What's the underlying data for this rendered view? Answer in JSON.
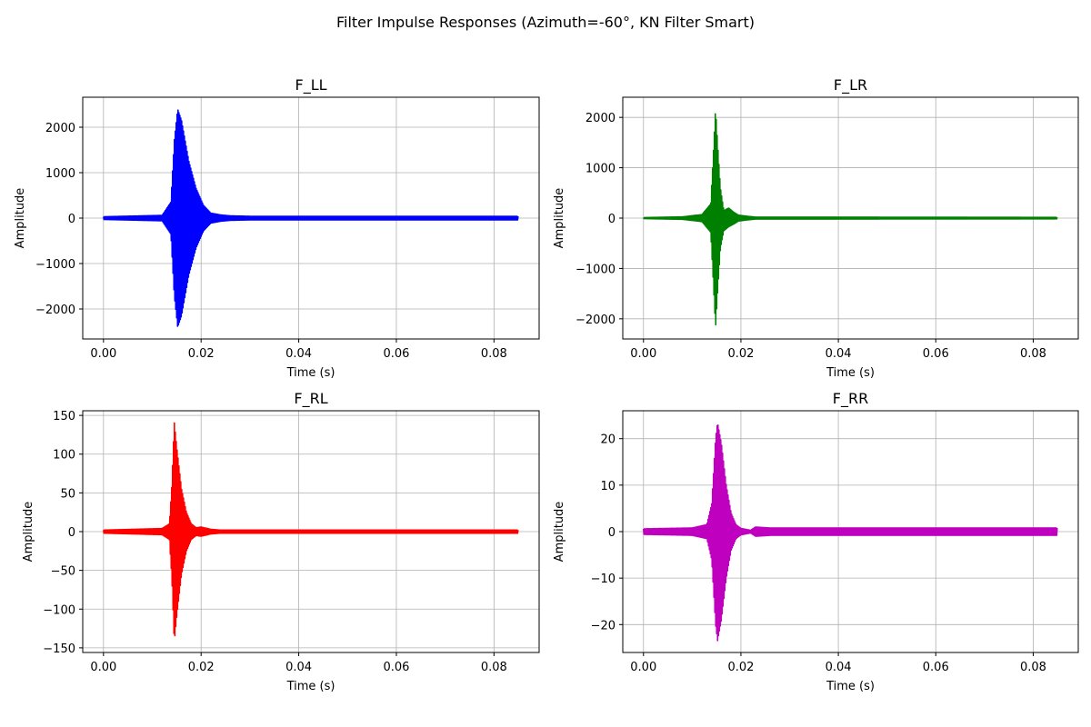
{
  "figure": {
    "title": "Filter Impulse Responses (Azimuth=-60°, KN Filter Smart)"
  },
  "chart_data": [
    {
      "type": "line",
      "title": "F_LL",
      "xlabel": "Time (s)",
      "ylabel": "Amplitude",
      "color": "#0000ff",
      "xlim": [
        -0.00425,
        0.08925
      ],
      "ylim": [
        -2660,
        2660
      ],
      "xticks": [
        0.0,
        0.02,
        0.04,
        0.06,
        0.08
      ],
      "xtick_labels": [
        "0.00",
        "0.02",
        "0.04",
        "0.06",
        "0.08"
      ],
      "yticks": [
        -2000,
        -1000,
        0,
        1000,
        2000
      ],
      "ytick_labels": [
        "−2000",
        "−1000",
        "0",
        "1000",
        "2000"
      ],
      "grid": true,
      "envelope": {
        "x": [
          0.0,
          0.012,
          0.0138,
          0.0145,
          0.0152,
          0.016,
          0.0175,
          0.019,
          0.0205,
          0.022,
          0.024,
          0.026,
          0.03,
          0.085
        ],
        "upper": [
          30,
          60,
          350,
          1700,
          2400,
          2150,
          1250,
          650,
          280,
          110,
          70,
          50,
          40,
          40
        ],
        "lower": [
          -30,
          -60,
          -350,
          -1700,
          -2400,
          -2150,
          -1250,
          -650,
          -280,
          -110,
          -70,
          -50,
          -40,
          -40
        ]
      }
    },
    {
      "type": "line",
      "title": "F_LR",
      "xlabel": "Time (s)",
      "ylabel": "Amplitude",
      "color": "#008000",
      "xlim": [
        -0.00425,
        0.08925
      ],
      "ylim": [
        -2400,
        2400
      ],
      "xticks": [
        0.0,
        0.02,
        0.04,
        0.06,
        0.08
      ],
      "xtick_labels": [
        "0.00",
        "0.02",
        "0.04",
        "0.06",
        "0.08"
      ],
      "yticks": [
        -2000,
        -1000,
        0,
        1000,
        2000
      ],
      "ytick_labels": [
        "−2000",
        "−1000",
        "0",
        "1000",
        "2000"
      ],
      "grid": true,
      "envelope": {
        "x": [
          0.0,
          0.008,
          0.012,
          0.0138,
          0.0144,
          0.0148,
          0.0152,
          0.0158,
          0.0165,
          0.0175,
          0.0185,
          0.0195,
          0.021,
          0.023,
          0.085
        ],
        "upper": [
          10,
          25,
          70,
          280,
          1400,
          2180,
          1500,
          600,
          150,
          200,
          120,
          60,
          40,
          20,
          15
        ],
        "lower": [
          -10,
          -25,
          -70,
          -280,
          -1400,
          -2180,
          -1500,
          -600,
          -250,
          -170,
          -120,
          -60,
          -40,
          -20,
          -15
        ]
      }
    },
    {
      "type": "line",
      "title": "F_RL",
      "xlabel": "Time (s)",
      "ylabel": "Amplitude",
      "color": "#ff0000",
      "xlim": [
        -0.00425,
        0.08925
      ],
      "ylim": [
        -156,
        156
      ],
      "xticks": [
        0.0,
        0.02,
        0.04,
        0.06,
        0.08
      ],
      "xtick_labels": [
        "0.00",
        "0.02",
        "0.04",
        "0.06",
        "0.08"
      ],
      "yticks": [
        -150,
        -100,
        -50,
        0,
        50,
        100,
        150
      ],
      "ytick_labels": [
        "−150",
        "−100",
        "−50",
        "0",
        "50",
        "100",
        "150"
      ],
      "grid": true,
      "envelope": {
        "x": [
          0.0,
          0.012,
          0.0135,
          0.014,
          0.0145,
          0.015,
          0.016,
          0.017,
          0.018,
          0.019,
          0.02,
          0.022,
          0.024,
          0.085
        ],
        "upper": [
          2,
          4,
          10,
          60,
          142,
          110,
          55,
          25,
          10,
          5,
          6,
          3,
          2,
          2
        ],
        "lower": [
          -2,
          -4,
          -10,
          -60,
          -142,
          -110,
          -55,
          -25,
          -10,
          -5,
          -6,
          -3,
          -2,
          -2
        ]
      }
    },
    {
      "type": "line",
      "title": "F_RR",
      "xlabel": "Time (s)",
      "ylabel": "Amplitude",
      "color": "#bf00bf",
      "xlim": [
        -0.00425,
        0.08925
      ],
      "ylim": [
        -26,
        26
      ],
      "xticks": [
        0.0,
        0.02,
        0.04,
        0.06,
        0.08
      ],
      "xtick_labels": [
        "0.00",
        "0.02",
        "0.04",
        "0.06",
        "0.08"
      ],
      "yticks": [
        -20,
        -10,
        0,
        10,
        20
      ],
      "ytick_labels": [
        "−20",
        "−10",
        "0",
        "10",
        "20"
      ],
      "grid": true,
      "envelope": {
        "x": [
          0.0,
          0.01,
          0.013,
          0.014,
          0.0148,
          0.0152,
          0.016,
          0.017,
          0.018,
          0.019,
          0.02,
          0.022,
          0.023,
          0.026,
          0.085
        ],
        "upper": [
          0.6,
          0.8,
          1.5,
          6,
          20,
          23.5,
          19,
          10,
          4,
          1.5,
          0.7,
          0.3,
          1,
          0.8,
          0.8
        ],
        "lower": [
          -0.6,
          -0.8,
          -1.5,
          -6,
          -20,
          -23.5,
          -19,
          -10,
          -4,
          -1.5,
          -0.7,
          -0.3,
          -1,
          -0.8,
          -0.8
        ]
      }
    }
  ]
}
